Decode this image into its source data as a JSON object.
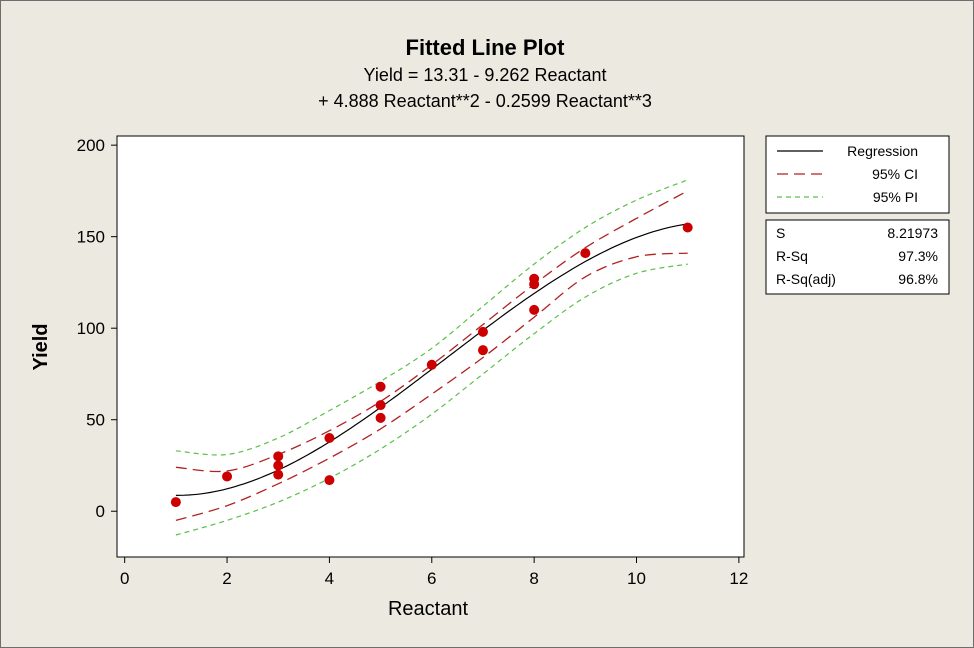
{
  "chart_data": {
    "type": "scatter",
    "title": "Fitted Line Plot",
    "equation_line1": "Yield =  13.31 - 9.262 Reactant",
    "equation_line2": "+ 4.888 Reactant**2 - 0.2599 Reactant**3",
    "xlabel": "Reactant",
    "ylabel": "Yield",
    "xlim": [
      -0.15,
      12.1
    ],
    "ylim": [
      -25,
      205
    ],
    "xticks": [
      0,
      2,
      4,
      6,
      8,
      10,
      12
    ],
    "yticks": [
      0,
      50,
      100,
      150,
      200
    ],
    "grid": false,
    "coefficients": {
      "b0": 13.31,
      "b1": -9.262,
      "b2": 4.888,
      "b3": -0.2599
    },
    "fit_range": [
      1,
      11
    ],
    "points": [
      {
        "x": 1,
        "y": 5
      },
      {
        "x": 2,
        "y": 19
      },
      {
        "x": 3,
        "y": 30
      },
      {
        "x": 3,
        "y": 25
      },
      {
        "x": 3,
        "y": 20
      },
      {
        "x": 4,
        "y": 40
      },
      {
        "x": 4,
        "y": 17
      },
      {
        "x": 5,
        "y": 68
      },
      {
        "x": 5,
        "y": 58
      },
      {
        "x": 5,
        "y": 51
      },
      {
        "x": 6,
        "y": 80
      },
      {
        "x": 7,
        "y": 98
      },
      {
        "x": 7,
        "y": 88
      },
      {
        "x": 8,
        "y": 127
      },
      {
        "x": 8,
        "y": 124
      },
      {
        "x": 8,
        "y": 110
      },
      {
        "x": 9,
        "y": 141
      },
      {
        "x": 11,
        "y": 155
      }
    ],
    "ci_band": {
      "x": [
        1,
        2,
        3,
        4,
        5,
        6,
        7,
        8,
        9,
        10,
        11
      ],
      "upper": [
        24,
        22,
        31,
        44,
        60,
        80,
        102,
        124,
        144,
        160,
        175
      ],
      "lower": [
        -5,
        3,
        15,
        29,
        45,
        64,
        84,
        106,
        128,
        139,
        141
      ]
    },
    "pi_band": {
      "x": [
        1,
        2,
        3,
        4,
        5,
        6,
        7,
        8,
        9,
        10,
        11
      ],
      "upper": [
        33,
        31,
        40,
        55,
        71,
        89,
        112,
        135,
        155,
        170,
        181
      ],
      "lower": [
        -13,
        -5,
        5,
        18,
        34,
        53,
        75,
        97,
        117,
        130,
        135
      ]
    },
    "legend": {
      "placement": "right",
      "entries": [
        {
          "label": "Regression",
          "style": "solid",
          "color": "#000000"
        },
        {
          "label": "95% CI",
          "style": "long-dash",
          "color": "#b22222"
        },
        {
          "label": "95% PI",
          "style": "dash",
          "color": "#5bbf4a"
        }
      ]
    },
    "stats": [
      {
        "label": "S",
        "value": "8.21973"
      },
      {
        "label": "R-Sq",
        "value": "97.3%"
      },
      {
        "label": "R-Sq(adj)",
        "value": "96.8%"
      }
    ],
    "colors": {
      "background": "#eceae0",
      "plot_area": "#ffffff",
      "points": "#cc0000",
      "regression": "#000000",
      "ci": "#b22222",
      "pi": "#5bbf4a"
    }
  }
}
